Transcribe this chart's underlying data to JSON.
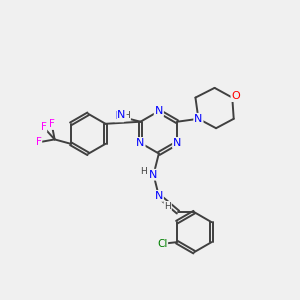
{
  "bg_color": "#f0f0f0",
  "atom_colors": {
    "N": "#0000ff",
    "O": "#ff0000",
    "C": "#404040",
    "F": "#ff00ff",
    "Cl": "#008000",
    "H_color": "#404040",
    "bond": "#404040"
  },
  "figsize": [
    3.0,
    3.0
  ],
  "dpi": 100,
  "xlim": [
    0,
    10
  ],
  "ylim": [
    0,
    10
  ]
}
